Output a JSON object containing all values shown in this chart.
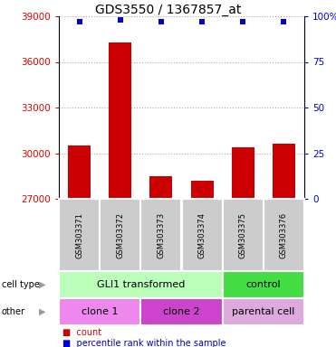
{
  "title": "GDS3550 / 1367857_at",
  "samples": [
    "GSM303371",
    "GSM303372",
    "GSM303373",
    "GSM303374",
    "GSM303375",
    "GSM303376"
  ],
  "counts": [
    30500,
    37300,
    28500,
    28200,
    30400,
    30600
  ],
  "percentile_ranks": [
    97,
    98,
    97,
    97,
    97,
    97
  ],
  "ylim_left": [
    27000,
    39000
  ],
  "yticks_left": [
    27000,
    30000,
    33000,
    36000,
    39000
  ],
  "ylim_right": [
    0,
    100
  ],
  "yticks_right": [
    0,
    25,
    50,
    75,
    100
  ],
  "bar_color": "#cc0000",
  "percentile_color": "#0000cc",
  "bar_width": 0.55,
  "dotted_color": "#aaaaaa",
  "cell_type_groups": [
    {
      "label": "GLI1 transformed",
      "start": 0,
      "end": 3,
      "color": "#bbffbb"
    },
    {
      "label": "control",
      "start": 4,
      "end": 5,
      "color": "#44dd44"
    }
  ],
  "other_groups": [
    {
      "label": "clone 1",
      "start": 0,
      "end": 1,
      "color": "#ee88ee"
    },
    {
      "label": "clone 2",
      "start": 2,
      "end": 3,
      "color": "#cc44cc"
    },
    {
      "label": "parental cell",
      "start": 4,
      "end": 5,
      "color": "#ddaadd"
    }
  ],
  "left_label_color": "#dd0000",
  "right_label_color": "#0000cc",
  "legend_count_color": "#cc0000",
  "legend_percentile_color": "#0000cc",
  "gray_bg": "#cccccc",
  "white_sep": "#ffffff"
}
